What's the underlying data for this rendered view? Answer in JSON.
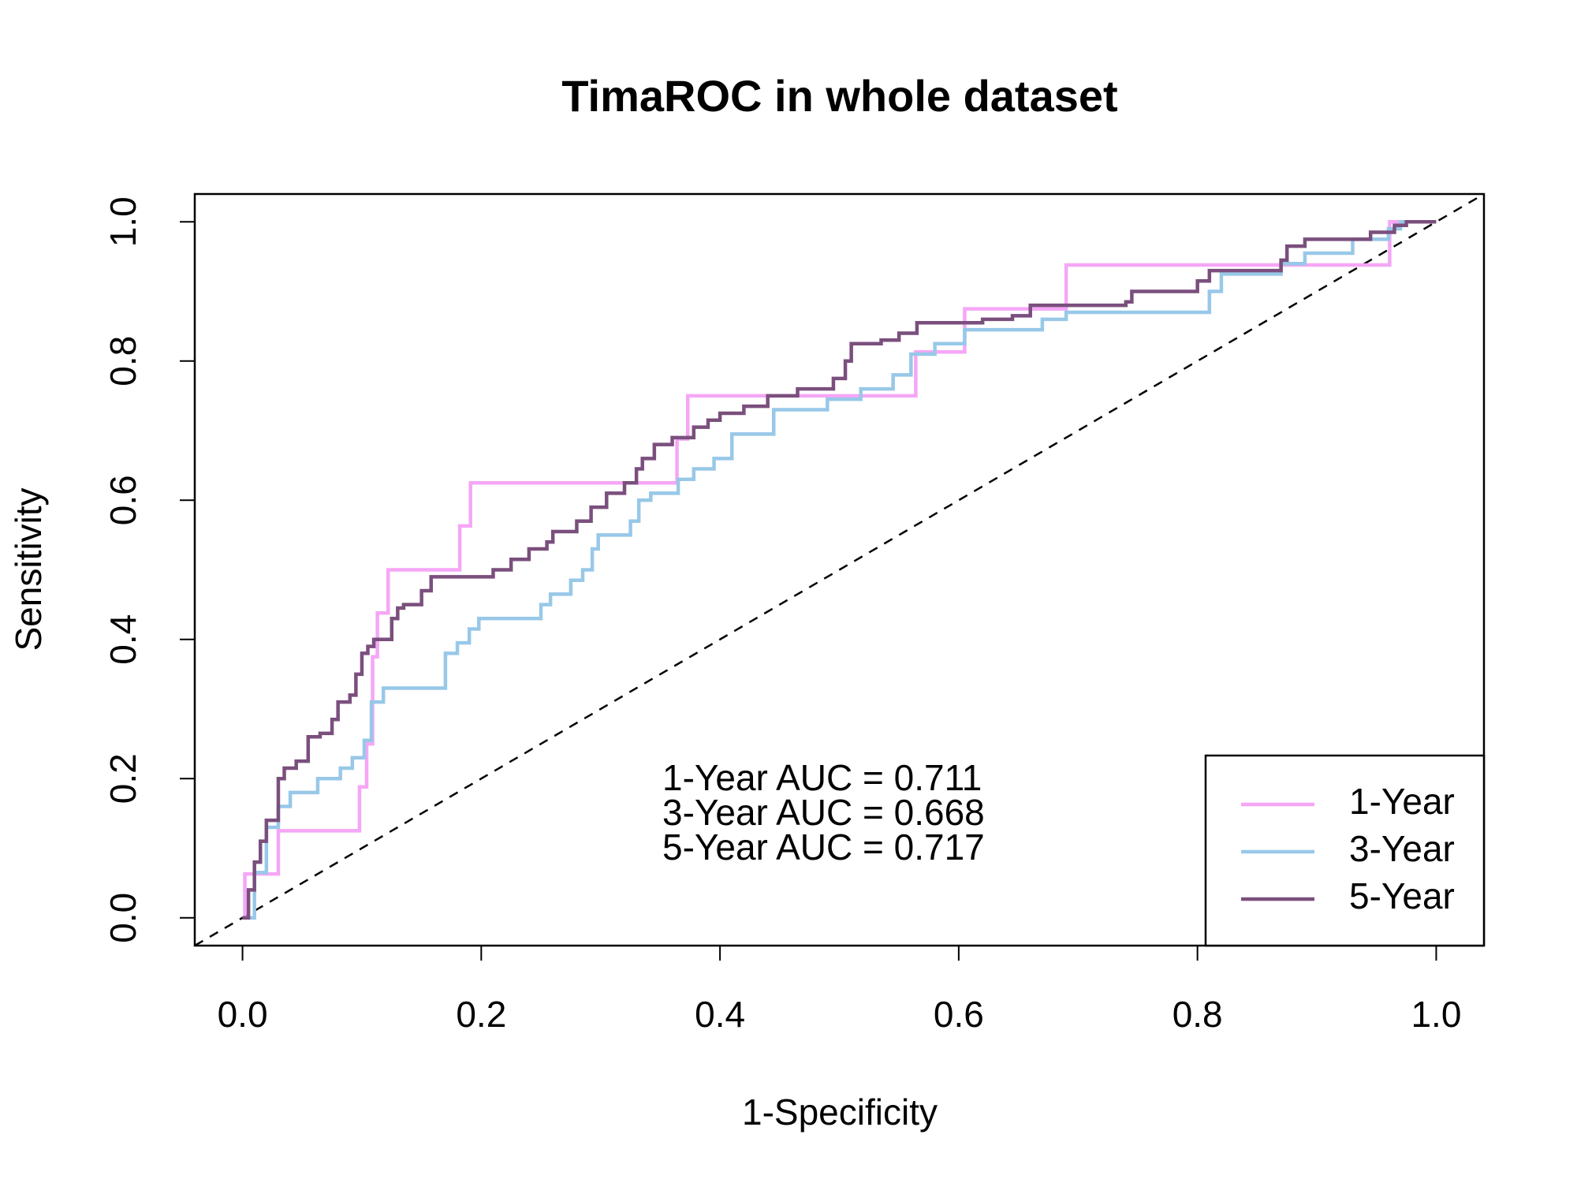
{
  "chart_data": {
    "type": "line",
    "title": "TimaROC in whole dataset",
    "x_label": "1-Specificity",
    "y_label": "Sensitivity",
    "xlim": [
      -0.04,
      1.04
    ],
    "ylim": [
      -0.04,
      1.04
    ],
    "xticks": [
      {
        "value": 0,
        "label": "0.0"
      },
      0.2,
      0.4,
      0.6,
      0.8,
      {
        "value": 1,
        "label": "1.0"
      }
    ],
    "yticks": [
      {
        "value": 0,
        "label": "0.0"
      },
      0.2,
      0.4,
      0.6,
      0.8,
      {
        "value": 1,
        "label": "1.0"
      }
    ],
    "legend": "bottomright",
    "annotations": [
      "1-Year AUC = 0.711",
      "3-Year AUC = 0.668",
      "5-Year AUC = 0.717"
    ],
    "series": [
      {
        "name": "1-Year",
        "color": "#f5a6f6",
        "x": [
          0,
          0.002,
          0.002,
          0.03,
          0.03,
          0.098,
          0.098,
          0.104,
          0.104,
          0.109,
          0.109,
          0.113,
          0.113,
          0.122,
          0.122,
          0.182,
          0.182,
          0.191,
          0.191,
          0.364,
          0.364,
          0.373,
          0.373,
          0.564,
          0.564,
          0.605,
          0.605,
          0.69,
          0.69,
          0.961,
          0.961,
          1
        ],
        "values": [
          0,
          0,
          0.063,
          0.063,
          0.125,
          0.125,
          0.188,
          0.188,
          0.25,
          0.25,
          0.375,
          0.375,
          0.438,
          0.438,
          0.5,
          0.5,
          0.563,
          0.563,
          0.625,
          0.625,
          0.688,
          0.688,
          0.75,
          0.75,
          0.813,
          0.813,
          0.875,
          0.875,
          0.938,
          0.938,
          1,
          1
        ]
      },
      {
        "name": "3-Year",
        "color": "#98c8e8",
        "x": [
          0,
          0.01,
          0.01,
          0.02,
          0.02,
          0.03,
          0.03,
          0.04,
          0.04,
          0.063,
          0.063,
          0.082,
          0.082,
          0.092,
          0.092,
          0.102,
          0.102,
          0.108,
          0.108,
          0.118,
          0.118,
          0.17,
          0.17,
          0.18,
          0.18,
          0.19,
          0.19,
          0.198,
          0.198,
          0.25,
          0.25,
          0.258,
          0.258,
          0.275,
          0.275,
          0.285,
          0.285,
          0.293,
          0.293,
          0.298,
          0.298,
          0.325,
          0.325,
          0.332,
          0.332,
          0.342,
          0.342,
          0.365,
          0.365,
          0.378,
          0.378,
          0.395,
          0.395,
          0.41,
          0.41,
          0.445,
          0.445,
          0.49,
          0.49,
          0.518,
          0.518,
          0.545,
          0.545,
          0.56,
          0.56,
          0.58,
          0.58,
          0.605,
          0.605,
          0.67,
          0.67,
          0.69,
          0.69,
          0.81,
          0.81,
          0.82,
          0.82,
          0.87,
          0.87,
          0.89,
          0.89,
          0.93,
          0.93,
          0.96,
          0.96,
          0.97,
          0.97,
          1
        ],
        "values": [
          0,
          0,
          0.065,
          0.065,
          0.13,
          0.13,
          0.16,
          0.16,
          0.18,
          0.18,
          0.2,
          0.2,
          0.215,
          0.215,
          0.23,
          0.23,
          0.255,
          0.255,
          0.31,
          0.31,
          0.33,
          0.33,
          0.38,
          0.38,
          0.395,
          0.395,
          0.415,
          0.415,
          0.43,
          0.43,
          0.45,
          0.45,
          0.465,
          0.465,
          0.485,
          0.485,
          0.5,
          0.5,
          0.53,
          0.53,
          0.55,
          0.55,
          0.57,
          0.57,
          0.6,
          0.6,
          0.61,
          0.61,
          0.63,
          0.63,
          0.645,
          0.645,
          0.66,
          0.66,
          0.695,
          0.695,
          0.73,
          0.73,
          0.745,
          0.745,
          0.76,
          0.76,
          0.78,
          0.78,
          0.81,
          0.81,
          0.825,
          0.825,
          0.845,
          0.845,
          0.86,
          0.86,
          0.87,
          0.87,
          0.9,
          0.9,
          0.925,
          0.925,
          0.94,
          0.94,
          0.955,
          0.955,
          0.975,
          0.975,
          0.99,
          0.99,
          1,
          1
        ]
      },
      {
        "name": "5-Year",
        "color": "#7a4f7d",
        "x": [
          0,
          0.005,
          0.005,
          0.01,
          0.01,
          0.015,
          0.015,
          0.02,
          0.02,
          0.03,
          0.03,
          0.035,
          0.035,
          0.045,
          0.045,
          0.055,
          0.055,
          0.065,
          0.065,
          0.075,
          0.075,
          0.08,
          0.08,
          0.09,
          0.09,
          0.095,
          0.095,
          0.1,
          0.1,
          0.105,
          0.105,
          0.11,
          0.11,
          0.125,
          0.125,
          0.13,
          0.13,
          0.135,
          0.135,
          0.15,
          0.15,
          0.158,
          0.158,
          0.21,
          0.21,
          0.225,
          0.225,
          0.24,
          0.24,
          0.255,
          0.255,
          0.26,
          0.26,
          0.28,
          0.28,
          0.292,
          0.292,
          0.305,
          0.305,
          0.32,
          0.32,
          0.33,
          0.33,
          0.335,
          0.335,
          0.345,
          0.345,
          0.36,
          0.36,
          0.378,
          0.378,
          0.39,
          0.39,
          0.4,
          0.4,
          0.42,
          0.42,
          0.44,
          0.44,
          0.465,
          0.465,
          0.495,
          0.495,
          0.505,
          0.505,
          0.51,
          0.51,
          0.535,
          0.535,
          0.55,
          0.55,
          0.565,
          0.565,
          0.62,
          0.62,
          0.645,
          0.645,
          0.66,
          0.66,
          0.74,
          0.74,
          0.745,
          0.745,
          0.8,
          0.8,
          0.81,
          0.81,
          0.87,
          0.87,
          0.875,
          0.875,
          0.89,
          0.89,
          0.945,
          0.945,
          0.965,
          0.965,
          0.975,
          0.975,
          1
        ],
        "values": [
          0,
          0,
          0.04,
          0.04,
          0.08,
          0.08,
          0.11,
          0.11,
          0.14,
          0.14,
          0.2,
          0.2,
          0.215,
          0.215,
          0.225,
          0.225,
          0.26,
          0.26,
          0.265,
          0.265,
          0.285,
          0.285,
          0.31,
          0.31,
          0.32,
          0.32,
          0.35,
          0.35,
          0.38,
          0.38,
          0.39,
          0.39,
          0.4,
          0.4,
          0.43,
          0.43,
          0.445,
          0.445,
          0.45,
          0.45,
          0.47,
          0.47,
          0.49,
          0.49,
          0.5,
          0.5,
          0.515,
          0.515,
          0.53,
          0.53,
          0.54,
          0.54,
          0.555,
          0.555,
          0.57,
          0.57,
          0.59,
          0.59,
          0.61,
          0.61,
          0.625,
          0.625,
          0.645,
          0.645,
          0.66,
          0.66,
          0.68,
          0.68,
          0.69,
          0.69,
          0.705,
          0.705,
          0.715,
          0.715,
          0.725,
          0.725,
          0.735,
          0.735,
          0.75,
          0.75,
          0.76,
          0.76,
          0.775,
          0.775,
          0.8,
          0.8,
          0.825,
          0.825,
          0.83,
          0.83,
          0.84,
          0.84,
          0.855,
          0.855,
          0.86,
          0.86,
          0.865,
          0.865,
          0.88,
          0.88,
          0.885,
          0.885,
          0.9,
          0.9,
          0.915,
          0.915,
          0.93,
          0.93,
          0.945,
          0.945,
          0.965,
          0.965,
          0.975,
          0.975,
          0.985,
          0.985,
          0.995,
          0.995,
          1,
          1
        ]
      }
    ]
  }
}
